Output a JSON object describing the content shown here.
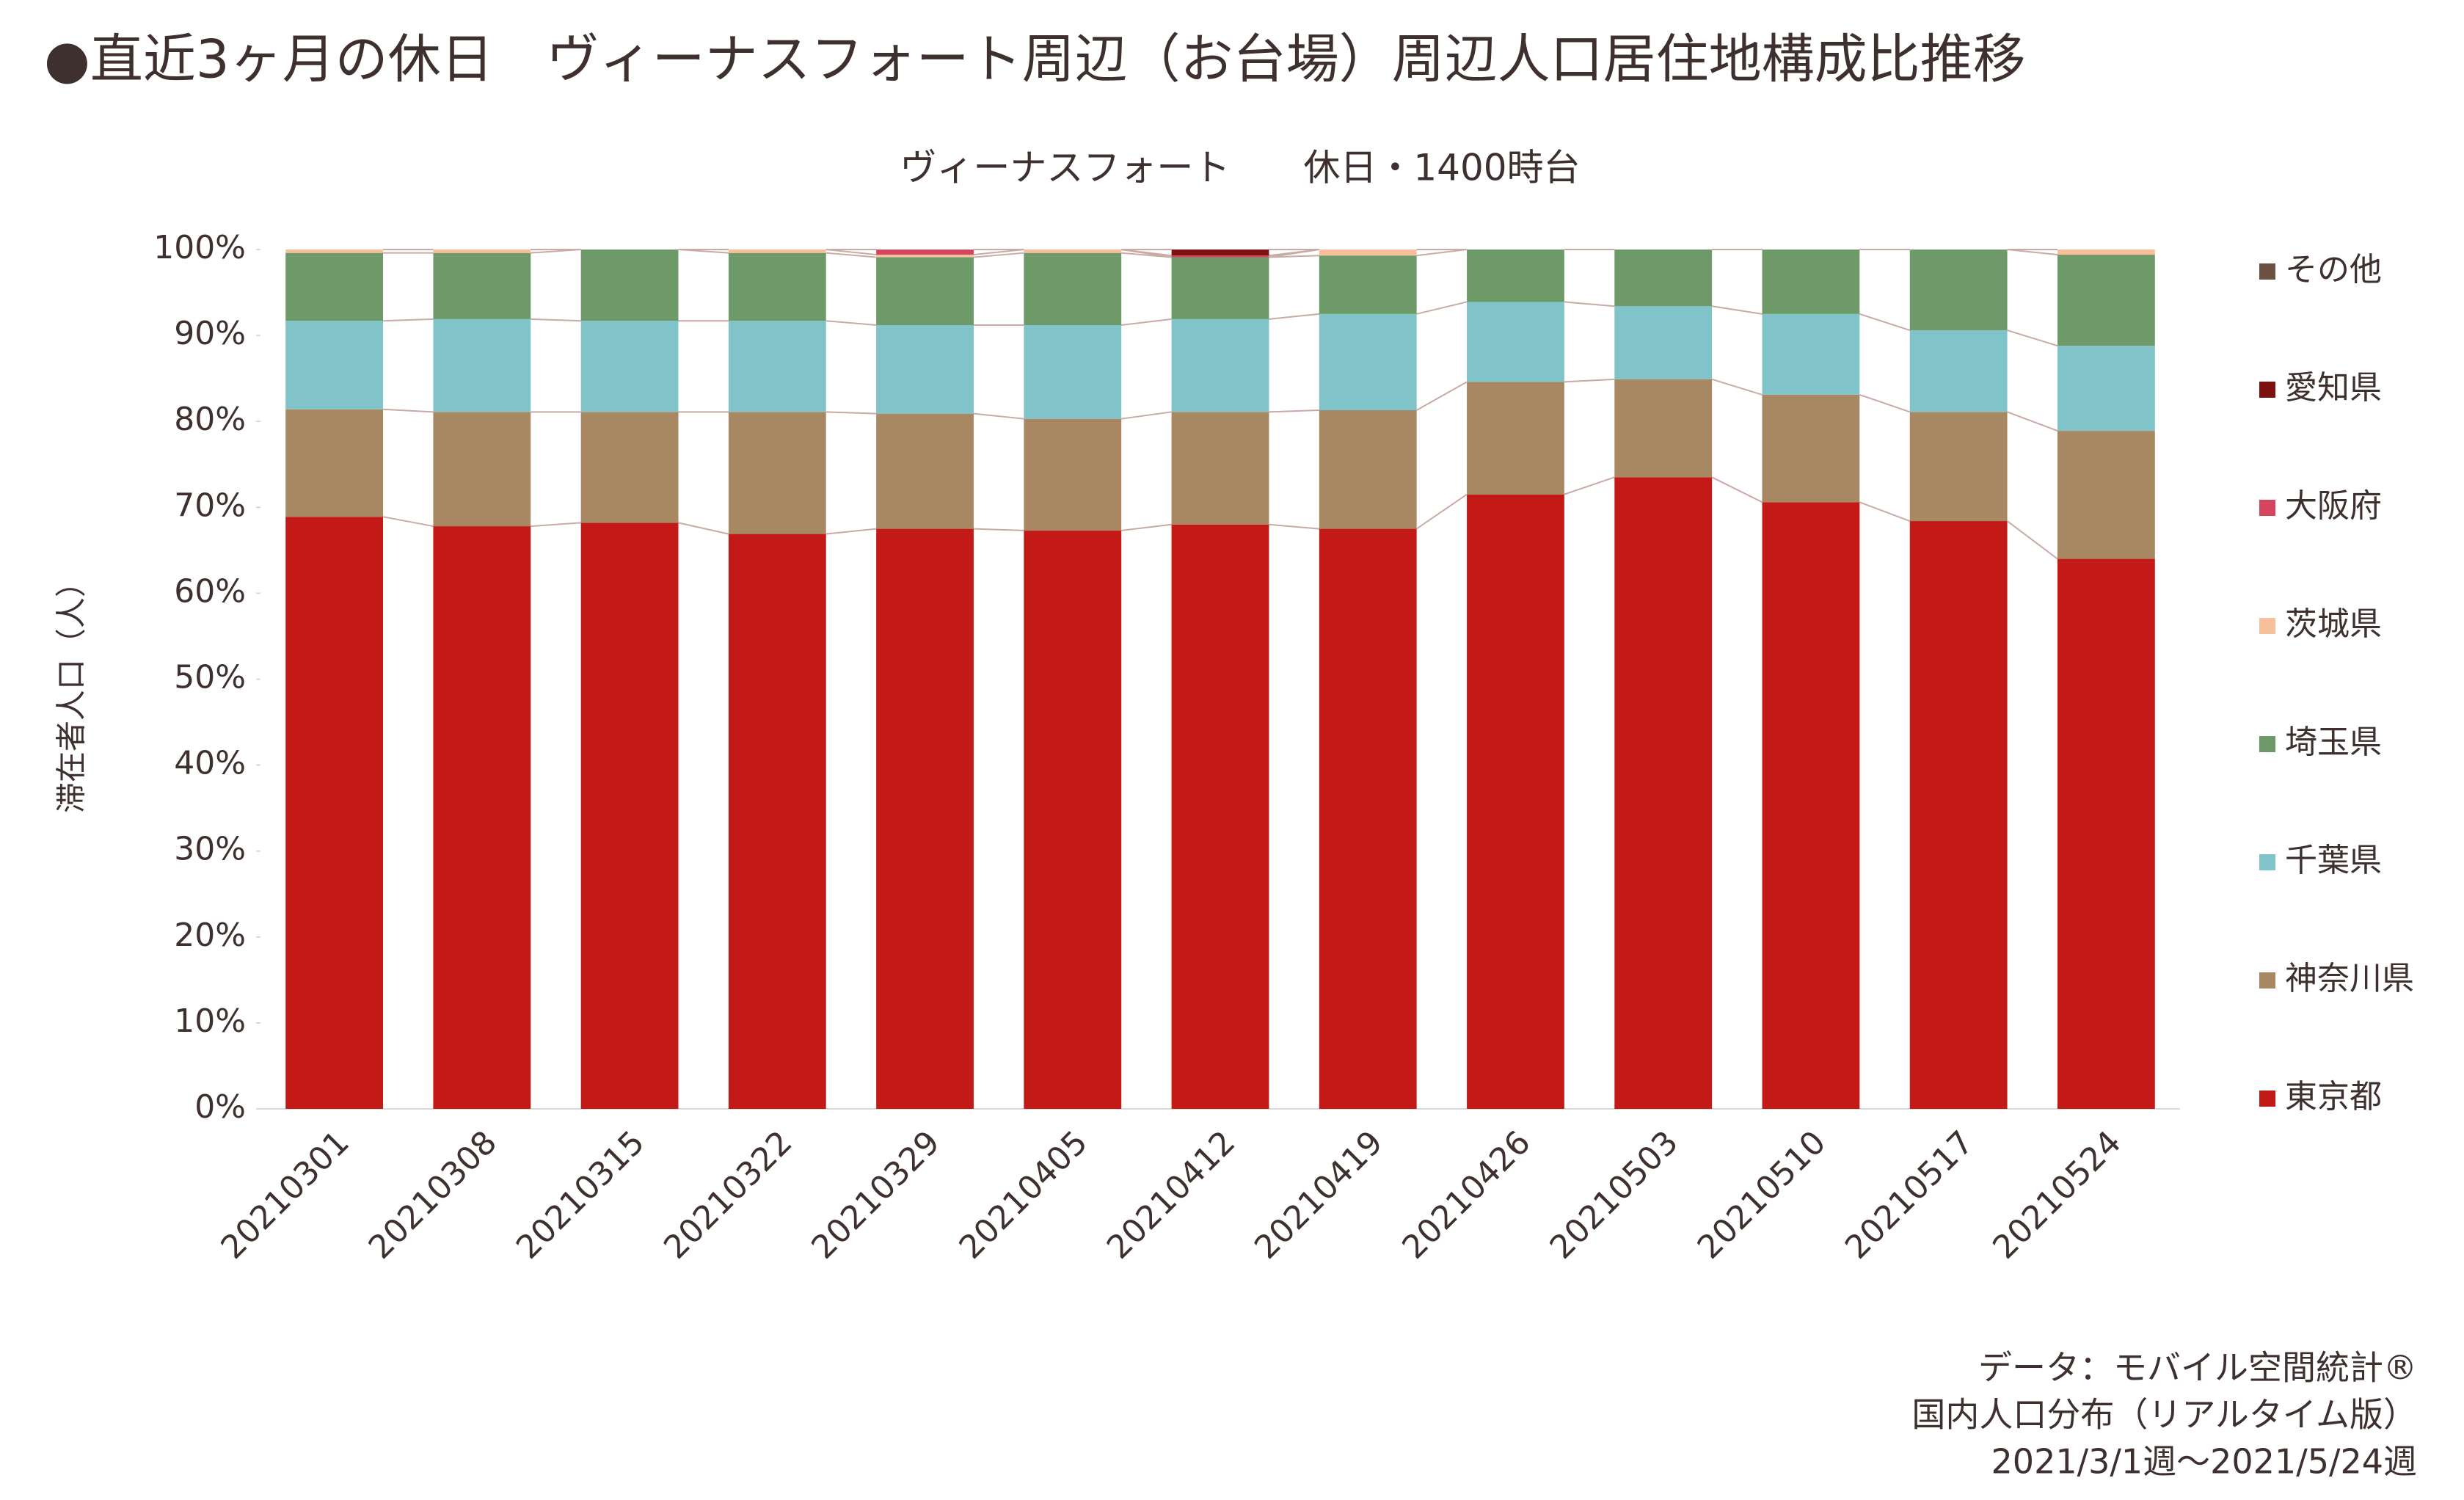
{
  "chart_data": {
    "type": "stacked_bar",
    "title": "●直近3ヶ月の休日　ヴィーナスフォート周辺（お台場）周辺人口居住地構成比推移",
    "subtitle": "ヴィーナスフォート　　休日・1400時台",
    "y_label": "滞在者人口（人）",
    "categories": [
      "20210301",
      "20210308",
      "20210315",
      "20210322",
      "20210329",
      "20210405",
      "20210412",
      "20210419",
      "20210426",
      "20210503",
      "20210510",
      "20210517",
      "20210524"
    ],
    "series": [
      {
        "name": "東京都",
        "color": "#c41a17",
        "values": [
          68.9,
          67.8,
          68.2,
          66.9,
          67.5,
          67.3,
          68.0,
          67.5,
          71.5,
          73.5,
          70.6,
          68.4,
          64.0
        ]
      },
      {
        "name": "神奈川県",
        "color": "#a88862",
        "values": [
          12.5,
          13.3,
          12.9,
          14.2,
          13.4,
          13.0,
          13.1,
          13.8,
          13.1,
          11.4,
          12.5,
          12.7,
          14.9
        ]
      },
      {
        "name": "千葉県",
        "color": "#80c3c8",
        "values": [
          10.3,
          10.8,
          10.6,
          10.6,
          10.3,
          10.9,
          10.8,
          11.2,
          9.3,
          8.5,
          9.4,
          9.5,
          9.9
        ]
      },
      {
        "name": "埼玉県",
        "color": "#6e9a6a",
        "values": [
          7.9,
          7.7,
          8.3,
          7.9,
          7.9,
          8.4,
          7.2,
          6.8,
          6.1,
          6.6,
          7.5,
          9.4,
          10.6
        ]
      },
      {
        "name": "茨城県",
        "color": "#f7c09a",
        "values": [
          0.4,
          0.4,
          0,
          0.4,
          0.3,
          0.4,
          0,
          0.7,
          0,
          0,
          0,
          0,
          0.6
        ]
      },
      {
        "name": "大阪府",
        "color": "#d6455e",
        "values": [
          0,
          0,
          0,
          0,
          0.6,
          0,
          0.2,
          0,
          0,
          0,
          0,
          0,
          0
        ]
      },
      {
        "name": "愛知県",
        "color": "#7f1010",
        "values": [
          0,
          0,
          0,
          0,
          0,
          0,
          0.7,
          0,
          0,
          0,
          0,
          0,
          0
        ]
      },
      {
        "name": "その他",
        "color": "#6b5240",
        "values": [
          0,
          0,
          0,
          0,
          0,
          0,
          0,
          0,
          0,
          0,
          0,
          0,
          0
        ]
      }
    ],
    "ylim": [
      0,
      100
    ],
    "yticks": [
      {
        "value": 0,
        "label": "0%"
      },
      {
        "value": 10,
        "label": "10%"
      },
      {
        "value": 20,
        "label": "20%"
      },
      {
        "value": 30,
        "label": "30%"
      },
      {
        "value": 40,
        "label": "40%"
      },
      {
        "value": 50,
        "label": "50%"
      },
      {
        "value": 60,
        "label": "60%"
      },
      {
        "value": 70,
        "label": "70%"
      },
      {
        "value": 80,
        "label": "80%"
      },
      {
        "value": 90,
        "label": "90%"
      },
      {
        "value": 100,
        "label": "100%"
      }
    ],
    "legend": "right",
    "series_lines": true,
    "source": [
      "データ：モバイル空間統計®",
      "国内人口分布（リアルタイム版）",
      "2021/3/1週～2021/5/24週"
    ]
  }
}
